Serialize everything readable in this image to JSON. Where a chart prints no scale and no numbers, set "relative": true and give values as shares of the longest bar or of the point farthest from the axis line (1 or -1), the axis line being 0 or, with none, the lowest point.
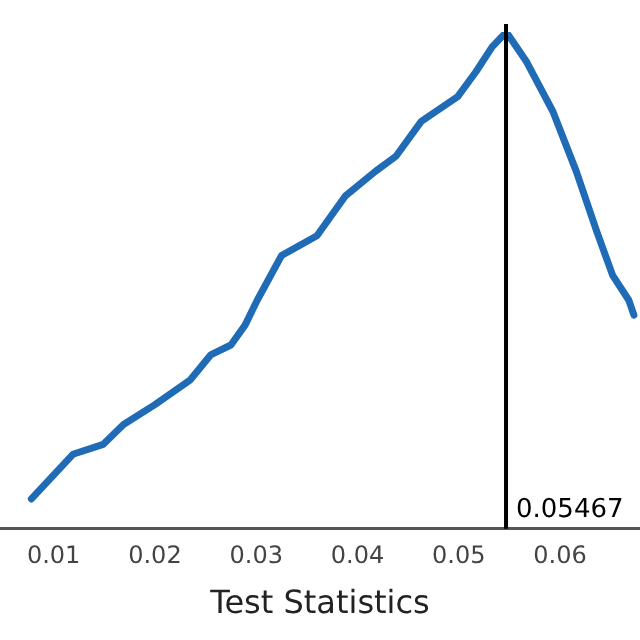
{
  "chart_data": {
    "type": "line",
    "xlabel": "Test Statistics",
    "relative": true,
    "x": [
      0.0078,
      0.0119,
      0.0149,
      0.0169,
      0.02,
      0.0235,
      0.0255,
      0.0275,
      0.0289,
      0.0301,
      0.0325,
      0.036,
      0.0388,
      0.0418,
      0.0438,
      0.0463,
      0.0499,
      0.0517,
      0.0533,
      0.0547,
      0.0567,
      0.0593,
      0.0616,
      0.0636,
      0.0652,
      0.0668,
      0.0673
    ],
    "series": [
      {
        "color": "#1f6bb5",
        "values": [
          0.06,
          0.15,
          0.17,
          0.21,
          0.25,
          0.3,
          0.35,
          0.37,
          0.41,
          0.46,
          0.55,
          0.59,
          0.67,
          0.72,
          0.75,
          0.82,
          0.87,
          0.92,
          0.97,
          1.0,
          0.94,
          0.84,
          0.72,
          0.6,
          0.51,
          0.46,
          0.43
        ]
      }
    ],
    "xlim": [
      0.0047,
      0.0679
    ],
    "xticks": [
      0.01,
      0.02,
      0.03,
      0.04,
      0.05,
      0.06
    ],
    "ref_lines": [
      {
        "axis": "x",
        "value": 0.05467,
        "label": "0.05467",
        "color": "#000000"
      }
    ],
    "grid": false,
    "legend": false,
    "marker": "none",
    "line_style": "solid"
  }
}
